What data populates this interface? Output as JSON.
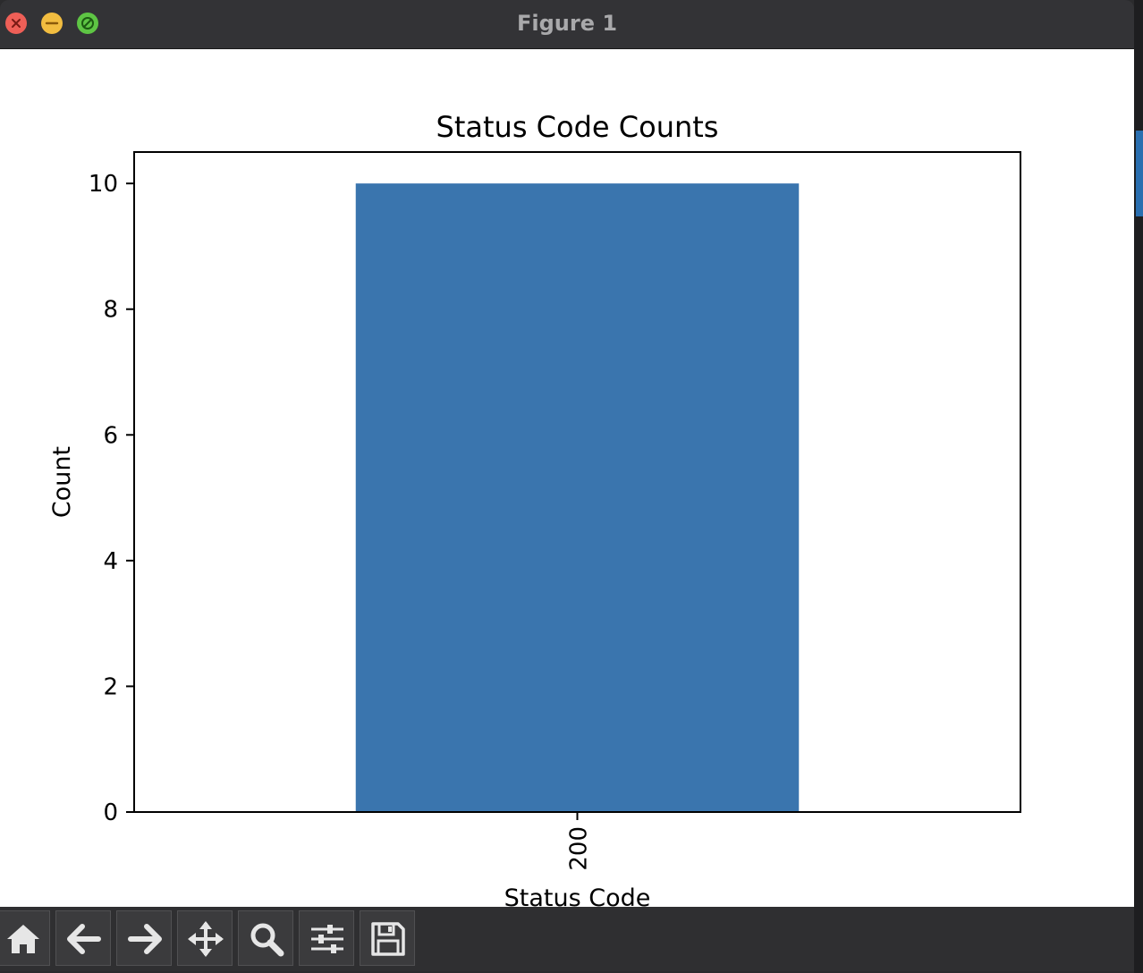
{
  "window": {
    "title": "Figure 1"
  },
  "chart_data": {
    "type": "bar",
    "title": "Status Code Counts",
    "xlabel": "Status Code",
    "ylabel": "Count",
    "categories": [
      "200"
    ],
    "values": [
      10
    ],
    "ylim": [
      0,
      10.5
    ],
    "yticks": [
      0,
      2,
      4,
      6,
      8,
      10
    ],
    "xtick_rotation": "vertical",
    "bar_color": "#3a75ae",
    "grid": false,
    "legend": "none"
  },
  "toolbar": {
    "buttons": [
      {
        "name": "home-button",
        "icon": "home-icon"
      },
      {
        "name": "back-button",
        "icon": "arrow-left-icon"
      },
      {
        "name": "forward-button",
        "icon": "arrow-right-icon"
      },
      {
        "name": "pan-button",
        "icon": "move-icon"
      },
      {
        "name": "zoom-button",
        "icon": "magnifier-icon"
      },
      {
        "name": "configure-subplots-button",
        "icon": "sliders-icon"
      },
      {
        "name": "save-button",
        "icon": "save-icon"
      }
    ]
  }
}
